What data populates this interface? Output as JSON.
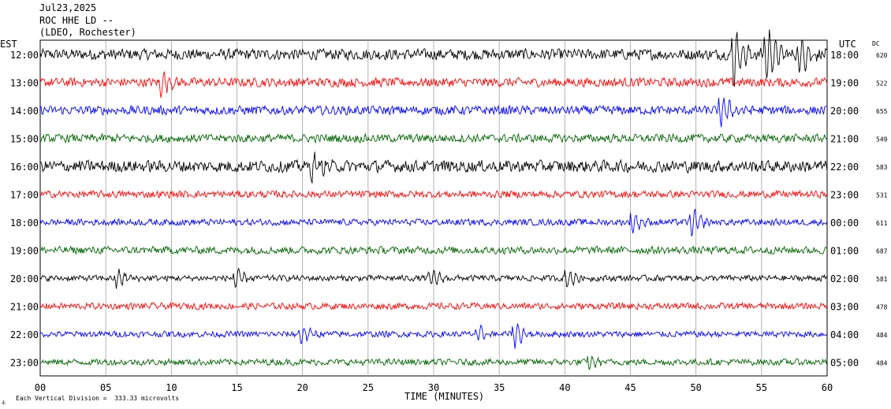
{
  "header": {
    "date": "Jul23,2025",
    "station": "ROC HHE LD --",
    "network": "(LDEO, Rochester)"
  },
  "footer": {
    "scale_note": "Each Vertical Division =  333.33 microvolts",
    "scale_mark": "⚓"
  },
  "chart_data": {
    "type": "line",
    "xlabel": "TIME (MINUTES)",
    "x_ticks": [
      "00",
      "05",
      "10",
      "15",
      "20",
      "25",
      "30",
      "35",
      "40",
      "45",
      "50",
      "55",
      "60"
    ],
    "xlim": [
      0,
      60
    ],
    "left_axis_label": "EST",
    "right_axis_label": "UTC",
    "dc_label": "DC",
    "trace_colors": [
      "#000000",
      "#ff0000",
      "#0000ff",
      "#006600"
    ],
    "rows": [
      {
        "est": "12:00",
        "utc": "18:00",
        "dc": "620",
        "color": "#000000",
        "amp": 0.55
      },
      {
        "est": "13:00",
        "utc": "19:00",
        "dc": "522",
        "color": "#ff0000",
        "amp": 0.45
      },
      {
        "est": "14:00",
        "utc": "20:00",
        "dc": "655",
        "color": "#0000ff",
        "amp": 0.45
      },
      {
        "est": "15:00",
        "utc": "21:00",
        "dc": "549",
        "color": "#006600",
        "amp": 0.42
      },
      {
        "est": "16:00",
        "utc": "22:00",
        "dc": "583",
        "color": "#000000",
        "amp": 0.6
      },
      {
        "est": "17:00",
        "utc": "23:00",
        "dc": "531",
        "color": "#ff0000",
        "amp": 0.35
      },
      {
        "est": "18:00",
        "utc": "00:00",
        "dc": "611",
        "color": "#0000ff",
        "amp": 0.32
      },
      {
        "est": "19:00",
        "utc": "01:00",
        "dc": "687",
        "color": "#006600",
        "amp": 0.38
      },
      {
        "est": "20:00",
        "utc": "02:00",
        "dc": "581",
        "color": "#000000",
        "amp": 0.3
      },
      {
        "est": "21:00",
        "utc": "03:00",
        "dc": "478",
        "color": "#ff0000",
        "amp": 0.32
      },
      {
        "est": "22:00",
        "utc": "04:00",
        "dc": "484",
        "color": "#0000ff",
        "amp": 0.3
      },
      {
        "est": "23:00",
        "utc": "05:00",
        "dc": "484",
        "color": "#006600",
        "amp": 0.32
      }
    ],
    "events": [
      {
        "row": 0,
        "minute": 53.0,
        "mag": 3.0
      },
      {
        "row": 0,
        "minute": 55.5,
        "mag": 2.5
      },
      {
        "row": 0,
        "minute": 58.0,
        "mag": 2.2
      },
      {
        "row": 1,
        "minute": 9.3,
        "mag": 1.3
      },
      {
        "row": 2,
        "minute": 52.0,
        "mag": 1.6
      },
      {
        "row": 4,
        "minute": 20.8,
        "mag": 1.3
      },
      {
        "row": 6,
        "minute": 45.3,
        "mag": 0.9
      },
      {
        "row": 6,
        "minute": 49.8,
        "mag": 1.2
      },
      {
        "row": 8,
        "minute": 5.9,
        "mag": 0.9
      },
      {
        "row": 8,
        "minute": 15.0,
        "mag": 0.9
      },
      {
        "row": 8,
        "minute": 29.9,
        "mag": 0.8
      },
      {
        "row": 8,
        "minute": 40.3,
        "mag": 0.9
      },
      {
        "row": 10,
        "minute": 20.0,
        "mag": 0.9
      },
      {
        "row": 10,
        "minute": 33.5,
        "mag": 0.7
      },
      {
        "row": 10,
        "minute": 36.3,
        "mag": 1.2
      },
      {
        "row": 11,
        "minute": 42.0,
        "mag": 0.6
      }
    ]
  }
}
